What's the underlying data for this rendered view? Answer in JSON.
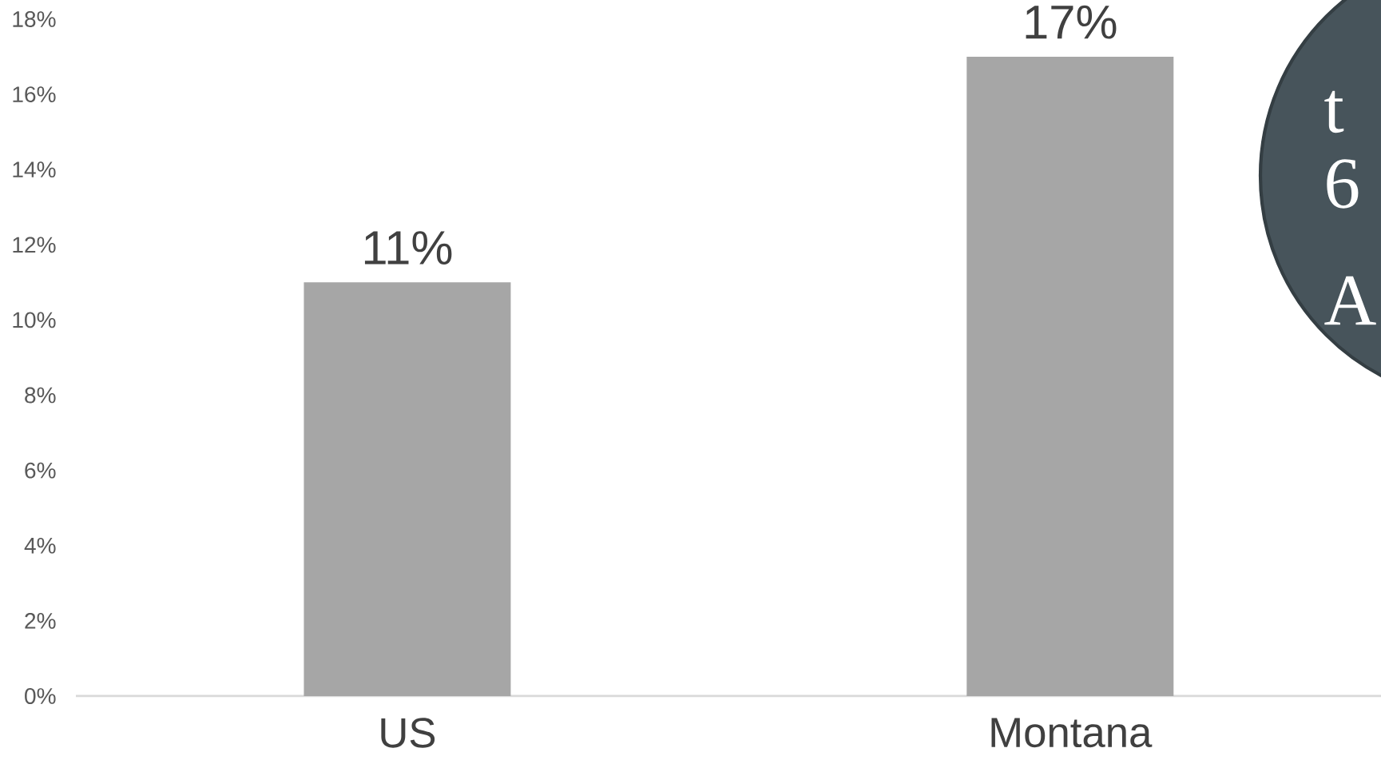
{
  "chart_data": {
    "type": "bar",
    "categories": [
      "US",
      "Montana"
    ],
    "values": [
      11,
      17
    ],
    "color": "#a6a6a6",
    "value_labels": [
      "11%",
      "17%"
    ],
    "ylim": [
      0,
      18
    ],
    "yticks": [
      {
        "value": 0,
        "label": "0%"
      },
      {
        "value": 2,
        "label": "2%"
      },
      {
        "value": 4,
        "label": "4%"
      },
      {
        "value": 6,
        "label": "6%"
      },
      {
        "value": 8,
        "label": "8%"
      },
      {
        "value": 10,
        "label": "10%"
      },
      {
        "value": 12,
        "label": "12%"
      },
      {
        "value": 14,
        "label": "14%"
      },
      {
        "value": 16,
        "label": "16%"
      },
      {
        "value": 18,
        "label": "18%"
      }
    ],
    "annotations": [
      "t",
      "6",
      "A"
    ],
    "grid": false
  }
}
